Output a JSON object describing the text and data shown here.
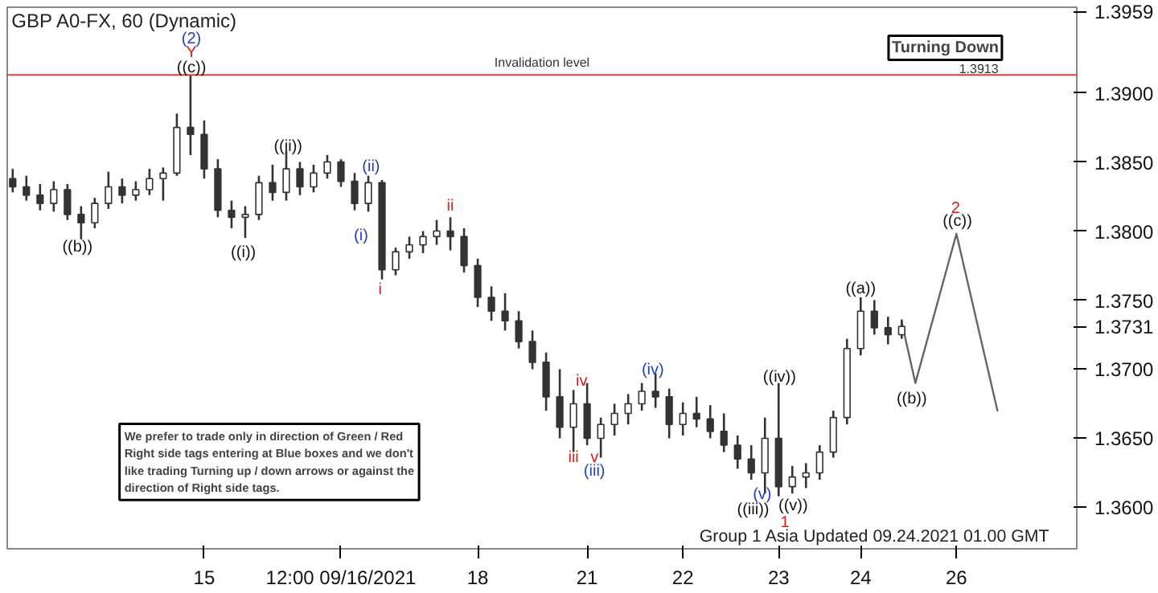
{
  "chart_data": {
    "type": "candlestick",
    "title": "GBP A0-FX, 60 (Dynamic)",
    "categories": [
      null,
      null,
      null,
      null,
      null,
      null,
      null,
      null,
      null,
      null,
      null,
      null,
      null,
      null,
      "15",
      null,
      null,
      null,
      null,
      null,
      null,
      null,
      null,
      null,
      "12:00 09/16/2021",
      null,
      null,
      null,
      null,
      null,
      null,
      null,
      null,
      null,
      "18",
      null,
      null,
      null,
      null,
      null,
      null,
      null,
      "21",
      null,
      null,
      null,
      null,
      null,
      null,
      "22",
      null,
      null,
      null,
      null,
      null,
      null,
      "23",
      null,
      null,
      null,
      null,
      null,
      "24",
      null,
      null,
      null,
      null,
      null,
      null,
      "26",
      null,
      null,
      null
    ],
    "ohlc": [
      [
        1.3838,
        1.3845,
        1.3828,
        1.3832
      ],
      [
        1.3832,
        1.384,
        1.3822,
        1.3826
      ],
      [
        1.3826,
        1.3834,
        1.3815,
        1.382
      ],
      [
        1.382,
        1.3836,
        1.3814,
        1.383
      ],
      [
        1.383,
        1.3834,
        1.3808,
        1.3812
      ],
      [
        1.3812,
        1.3818,
        1.3794,
        1.3806
      ],
      [
        1.3806,
        1.3824,
        1.3802,
        1.382
      ],
      [
        1.382,
        1.3843,
        1.3816,
        1.3832
      ],
      [
        1.3832,
        1.3838,
        1.382,
        1.3826
      ],
      [
        1.3826,
        1.3836,
        1.3822,
        1.383
      ],
      [
        1.383,
        1.3845,
        1.3826,
        1.3838
      ],
      [
        1.3838,
        1.3846,
        1.3822,
        1.3842
      ],
      [
        1.3842,
        1.3885,
        1.384,
        1.3875
      ],
      [
        1.3875,
        1.3913,
        1.3855,
        1.387
      ],
      [
        1.387,
        1.388,
        1.3838,
        1.3845
      ],
      [
        1.3845,
        1.3852,
        1.381,
        1.3815
      ],
      [
        1.3815,
        1.3822,
        1.3802,
        1.381
      ],
      [
        1.381,
        1.3818,
        1.3795,
        1.3812
      ],
      [
        1.3812,
        1.384,
        1.3808,
        1.3835
      ],
      [
        1.3835,
        1.3848,
        1.3822,
        1.3828
      ],
      [
        1.3828,
        1.3858,
        1.3822,
        1.3845
      ],
      [
        1.3845,
        1.385,
        1.3826,
        1.3832
      ],
      [
        1.3832,
        1.3848,
        1.3828,
        1.3842
      ],
      [
        1.3842,
        1.3855,
        1.3838,
        1.385
      ],
      [
        1.385,
        1.3852,
        1.3832,
        1.3836
      ],
      [
        1.3836,
        1.3842,
        1.3815,
        1.382
      ],
      [
        1.382,
        1.384,
        1.3814,
        1.3835
      ],
      [
        1.3835,
        1.3837,
        1.3765,
        1.3772
      ],
      [
        1.3772,
        1.3788,
        1.3768,
        1.3785
      ],
      [
        1.3785,
        1.3796,
        1.378,
        1.379
      ],
      [
        1.379,
        1.38,
        1.3784,
        1.3796
      ],
      [
        1.3796,
        1.3808,
        1.379,
        1.38
      ],
      [
        1.38,
        1.381,
        1.3786,
        1.3796
      ],
      [
        1.3796,
        1.3802,
        1.377,
        1.3775
      ],
      [
        1.3775,
        1.378,
        1.3745,
        1.3752
      ],
      [
        1.3752,
        1.376,
        1.3735,
        1.3742
      ],
      [
        1.3742,
        1.3755,
        1.3728,
        1.3735
      ],
      [
        1.3735,
        1.3742,
        1.3715,
        1.372
      ],
      [
        1.372,
        1.3728,
        1.37,
        1.3705
      ],
      [
        1.3705,
        1.3712,
        1.367,
        1.368
      ],
      [
        1.368,
        1.37,
        1.365,
        1.3658
      ],
      [
        1.3658,
        1.3685,
        1.364,
        1.3675
      ],
      [
        1.3675,
        1.369,
        1.3645,
        1.365
      ],
      [
        1.365,
        1.3665,
        1.3636,
        1.366
      ],
      [
        1.366,
        1.3675,
        1.3652,
        1.3668
      ],
      [
        1.3668,
        1.3682,
        1.366,
        1.3675
      ],
      [
        1.3675,
        1.369,
        1.367,
        1.3684
      ],
      [
        1.3684,
        1.3697,
        1.3672,
        1.368
      ],
      [
        1.368,
        1.3686,
        1.365,
        1.366
      ],
      [
        1.366,
        1.3676,
        1.3652,
        1.3668
      ],
      [
        1.3668,
        1.368,
        1.3658,
        1.3664
      ],
      [
        1.3664,
        1.3674,
        1.365,
        1.3655
      ],
      [
        1.3655,
        1.3668,
        1.364,
        1.3645
      ],
      [
        1.3645,
        1.3652,
        1.3628,
        1.3635
      ],
      [
        1.3635,
        1.3645,
        1.362,
        1.3625
      ],
      [
        1.3625,
        1.3665,
        1.361,
        1.365
      ],
      [
        1.365,
        1.369,
        1.3608,
        1.3615
      ],
      [
        1.3615,
        1.363,
        1.361,
        1.3622
      ],
      [
        1.3622,
        1.3632,
        1.3614,
        1.3625
      ],
      [
        1.3625,
        1.3645,
        1.362,
        1.364
      ],
      [
        1.364,
        1.367,
        1.3636,
        1.3665
      ],
      [
        1.3665,
        1.3722,
        1.366,
        1.3715
      ],
      [
        1.3715,
        1.3752,
        1.371,
        1.3742
      ],
      [
        1.3742,
        1.375,
        1.3725,
        1.373
      ],
      [
        1.373,
        1.3738,
        1.3718,
        1.3725
      ],
      [
        1.3725,
        1.3736,
        1.3722,
        1.3731
      ],
      null,
      null,
      null,
      null,
      null,
      null,
      null
    ],
    "color": "#333333",
    "series": [
      {
        "type": "line",
        "color": "#666666",
        "values": [
          null,
          null,
          null,
          null,
          null,
          null,
          null,
          null,
          null,
          null,
          null,
          null,
          null,
          null,
          null,
          null,
          null,
          null,
          null,
          null,
          null,
          null,
          null,
          null,
          null,
          null,
          null,
          null,
          null,
          null,
          null,
          null,
          null,
          null,
          null,
          null,
          null,
          null,
          null,
          null,
          null,
          null,
          null,
          null,
          null,
          null,
          null,
          null,
          null,
          null,
          null,
          null,
          null,
          null,
          null,
          null,
          null,
          null,
          null,
          null,
          null,
          null,
          null,
          null,
          null,
          1.3734,
          1.369,
          null,
          null,
          1.3798,
          null,
          null,
          1.367
        ]
      }
    ],
    "ylim": [
      1.357,
      1.3962
    ],
    "yticks": [
      {
        "value": 1.36,
        "label": "1.3600"
      },
      {
        "value": 1.365,
        "label": "1.3650"
      },
      {
        "value": 1.37,
        "label": "1.3700"
      },
      {
        "value": 1.3731,
        "label": "1.3731"
      },
      {
        "value": 1.375,
        "label": "1.3750"
      },
      {
        "value": 1.38,
        "label": "1.3800"
      },
      {
        "value": 1.385,
        "label": "1.3850"
      },
      {
        "value": 1.39,
        "label": "1.3900"
      },
      {
        "value": 1.3959,
        "label": "1.3959"
      }
    ],
    "grid": false,
    "ref_lines": [
      {
        "axis": "y",
        "value": 1.3913,
        "label": "Invalidation level",
        "color": "#e03c31"
      }
    ],
    "annotations": [
      "We prefer to trade only in direction of Green / Red Right side tags entering at Blue boxes and we don't like trading Turning up / down arrows or against the direction of Right side tags.",
      "Group 1 Asia Updated 09.24.2021 01.00 GMT",
      "Turning Down",
      "1.3913",
      "(2)",
      "Y",
      "((c))",
      "((b))",
      "((i))",
      "((ii))",
      "(i)",
      "(ii)",
      "i",
      "ii",
      "iii",
      "iv",
      "v",
      "(iii)",
      "(iv)",
      "(v)",
      "((iii))",
      "((v))",
      "1",
      "((iv))",
      "((a))",
      "((b))",
      "((c))",
      "2"
    ]
  }
}
